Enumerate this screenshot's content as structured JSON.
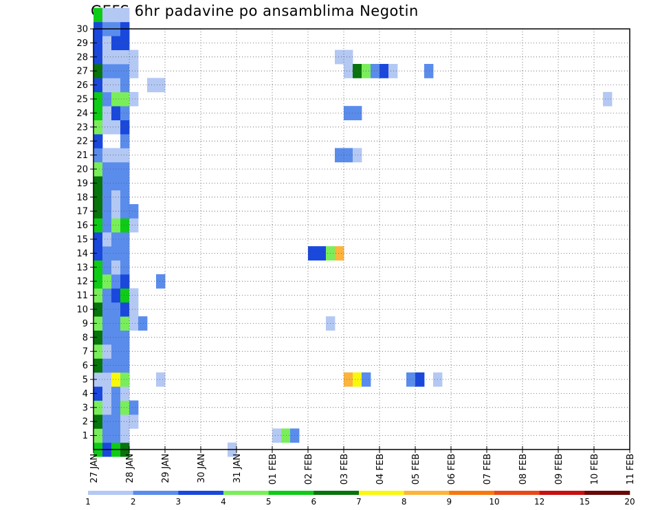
{
  "title": "GEFS 6hr padavine po ansamblima Negotin",
  "chart_data": {
    "type": "heatmap",
    "title": "GEFS 6hr padavine po ansamblima Negotin",
    "x_tick_labels": [
      "27 JAN",
      "28 JAN",
      "29 JAN",
      "30 JAN",
      "31 JAN",
      "01 FEB",
      "02 FEB",
      "03 FEB",
      "04 FEB",
      "05 FEB",
      "06 FEB",
      "07 FEB",
      "08 FEB",
      "09 FEB",
      "10 FEB",
      "11 FEB"
    ],
    "x_range": [
      "27 JAN 00UTC",
      "11 FEB 00UTC"
    ],
    "x_step_hours": 6,
    "y_tick_labels": [
      "1",
      "2",
      "3",
      "4",
      "5",
      "6",
      "7",
      "8",
      "9",
      "10",
      "11",
      "12",
      "13",
      "14",
      "15",
      "16",
      "17",
      "18",
      "19",
      "20",
      "21",
      "22",
      "23",
      "24",
      "25",
      "26",
      "27",
      "28",
      "29",
      "30"
    ],
    "y_range": [
      0,
      30
    ],
    "grid": true,
    "legend": {
      "placement": "bottom",
      "tick_labels": [
        "1",
        "2",
        "3",
        "4",
        "5",
        "6",
        "7",
        "8",
        "9",
        "10",
        "12",
        "15",
        "20"
      ],
      "colors": [
        "#b4c8f4",
        "#5a8cec",
        "#1a48dc",
        "#7aee5a",
        "#0ecb16",
        "#08740c",
        "#f8f80c",
        "#fcb43c",
        "#f87810",
        "#e84818",
        "#c81010",
        "#6a0808"
      ]
    },
    "cells_format": "[member, time_step_index_from_27JAN00UTC, level_index]",
    "cells": [
      [
        0,
        0,
        5
      ],
      [
        0,
        1,
        3
      ],
      [
        0,
        2,
        5
      ],
      [
        0,
        3,
        6
      ],
      [
        0,
        15,
        1
      ],
      [
        1,
        0,
        4
      ],
      [
        1,
        1,
        2
      ],
      [
        1,
        2,
        2
      ],
      [
        1,
        3,
        1
      ],
      [
        1,
        20,
        1
      ],
      [
        1,
        21,
        4
      ],
      [
        1,
        22,
        2
      ],
      [
        2,
        0,
        6
      ],
      [
        2,
        1,
        2
      ],
      [
        2,
        2,
        2
      ],
      [
        2,
        3,
        1
      ],
      [
        2,
        4,
        1
      ],
      [
        3,
        0,
        4
      ],
      [
        3,
        1,
        1
      ],
      [
        3,
        2,
        2
      ],
      [
        3,
        3,
        4
      ],
      [
        3,
        4,
        2
      ],
      [
        4,
        0,
        3
      ],
      [
        4,
        1,
        1
      ],
      [
        4,
        2,
        2
      ],
      [
        4,
        3,
        1
      ],
      [
        5,
        0,
        1
      ],
      [
        5,
        1,
        1
      ],
      [
        5,
        2,
        7
      ],
      [
        5,
        3,
        4
      ],
      [
        5,
        7,
        1
      ],
      [
        5,
        28,
        8
      ],
      [
        5,
        29,
        7
      ],
      [
        5,
        30,
        2
      ],
      [
        5,
        35,
        2
      ],
      [
        5,
        36,
        3
      ],
      [
        5,
        38,
        1
      ],
      [
        6,
        0,
        6
      ],
      [
        6,
        1,
        2
      ],
      [
        6,
        2,
        2
      ],
      [
        6,
        3,
        2
      ],
      [
        7,
        0,
        4
      ],
      [
        7,
        1,
        1
      ],
      [
        7,
        2,
        2
      ],
      [
        7,
        3,
        2
      ],
      [
        8,
        0,
        6
      ],
      [
        8,
        1,
        2
      ],
      [
        8,
        2,
        2
      ],
      [
        8,
        3,
        2
      ],
      [
        9,
        0,
        4
      ],
      [
        9,
        1,
        2
      ],
      [
        9,
        2,
        2
      ],
      [
        9,
        3,
        4
      ],
      [
        9,
        4,
        1
      ],
      [
        9,
        5,
        2
      ],
      [
        9,
        26,
        1
      ],
      [
        10,
        0,
        6
      ],
      [
        10,
        1,
        2
      ],
      [
        10,
        2,
        2
      ],
      [
        10,
        3,
        3
      ],
      [
        10,
        4,
        1
      ],
      [
        11,
        0,
        4
      ],
      [
        11,
        1,
        2
      ],
      [
        11,
        2,
        3
      ],
      [
        11,
        3,
        5
      ],
      [
        11,
        4,
        1
      ],
      [
        12,
        0,
        5
      ],
      [
        12,
        1,
        4
      ],
      [
        12,
        2,
        2
      ],
      [
        12,
        3,
        3
      ],
      [
        12,
        7,
        2
      ],
      [
        13,
        0,
        5
      ],
      [
        13,
        1,
        2
      ],
      [
        13,
        2,
        1
      ],
      [
        13,
        3,
        2
      ],
      [
        14,
        0,
        3
      ],
      [
        14,
        1,
        2
      ],
      [
        14,
        2,
        2
      ],
      [
        14,
        3,
        2
      ],
      [
        14,
        24,
        3
      ],
      [
        14,
        25,
        3
      ],
      [
        14,
        26,
        4
      ],
      [
        14,
        27,
        8
      ],
      [
        15,
        0,
        3
      ],
      [
        15,
        1,
        1
      ],
      [
        15,
        2,
        2
      ],
      [
        15,
        3,
        2
      ],
      [
        16,
        0,
        5
      ],
      [
        16,
        1,
        2
      ],
      [
        16,
        2,
        4
      ],
      [
        16,
        3,
        5
      ],
      [
        16,
        4,
        1
      ],
      [
        17,
        0,
        6
      ],
      [
        17,
        1,
        2
      ],
      [
        17,
        2,
        1
      ],
      [
        17,
        3,
        2
      ],
      [
        17,
        4,
        2
      ],
      [
        18,
        0,
        6
      ],
      [
        18,
        1,
        2
      ],
      [
        18,
        2,
        1
      ],
      [
        18,
        3,
        2
      ],
      [
        19,
        0,
        6
      ],
      [
        19,
        1,
        2
      ],
      [
        19,
        2,
        2
      ],
      [
        19,
        3,
        2
      ],
      [
        20,
        0,
        4
      ],
      [
        20,
        1,
        2
      ],
      [
        20,
        2,
        2
      ],
      [
        20,
        3,
        2
      ],
      [
        21,
        0,
        2
      ],
      [
        21,
        1,
        1
      ],
      [
        21,
        2,
        1
      ],
      [
        21,
        3,
        1
      ],
      [
        21,
        27,
        2
      ],
      [
        21,
        28,
        2
      ],
      [
        21,
        29,
        1
      ],
      [
        22,
        0,
        3
      ],
      [
        22,
        3,
        2
      ],
      [
        23,
        0,
        4
      ],
      [
        23,
        1,
        1
      ],
      [
        23,
        2,
        1
      ],
      [
        23,
        3,
        3
      ],
      [
        24,
        0,
        5
      ],
      [
        24,
        1,
        1
      ],
      [
        24,
        2,
        3
      ],
      [
        24,
        3,
        2
      ],
      [
        24,
        28,
        2
      ],
      [
        24,
        29,
        2
      ],
      [
        25,
        0,
        5
      ],
      [
        25,
        1,
        2
      ],
      [
        25,
        2,
        4
      ],
      [
        25,
        3,
        4
      ],
      [
        25,
        4,
        1
      ],
      [
        25,
        57,
        1
      ],
      [
        26,
        0,
        3
      ],
      [
        26,
        1,
        1
      ],
      [
        26,
        2,
        1
      ],
      [
        26,
        3,
        2
      ],
      [
        26,
        6,
        1
      ],
      [
        26,
        7,
        1
      ],
      [
        27,
        0,
        6
      ],
      [
        27,
        1,
        2
      ],
      [
        27,
        2,
        2
      ],
      [
        27,
        3,
        2
      ],
      [
        27,
        4,
        1
      ],
      [
        27,
        28,
        1
      ],
      [
        27,
        29,
        6
      ],
      [
        27,
        30,
        4
      ],
      [
        27,
        31,
        2
      ],
      [
        27,
        32,
        3
      ],
      [
        27,
        33,
        1
      ],
      [
        27,
        37,
        2
      ],
      [
        28,
        0,
        3
      ],
      [
        28,
        1,
        1
      ],
      [
        28,
        2,
        1
      ],
      [
        28,
        3,
        1
      ],
      [
        28,
        4,
        1
      ],
      [
        28,
        27,
        1
      ],
      [
        28,
        28,
        1
      ],
      [
        29,
        0,
        3
      ],
      [
        29,
        1,
        1
      ],
      [
        29,
        2,
        3
      ],
      [
        29,
        3,
        3
      ],
      [
        30,
        0,
        3
      ],
      [
        30,
        1,
        2
      ],
      [
        30,
        2,
        2
      ],
      [
        30,
        3,
        3
      ],
      [
        31,
        0,
        5
      ],
      [
        31,
        1,
        1
      ],
      [
        31,
        2,
        1
      ],
      [
        31,
        3,
        1
      ]
    ]
  }
}
